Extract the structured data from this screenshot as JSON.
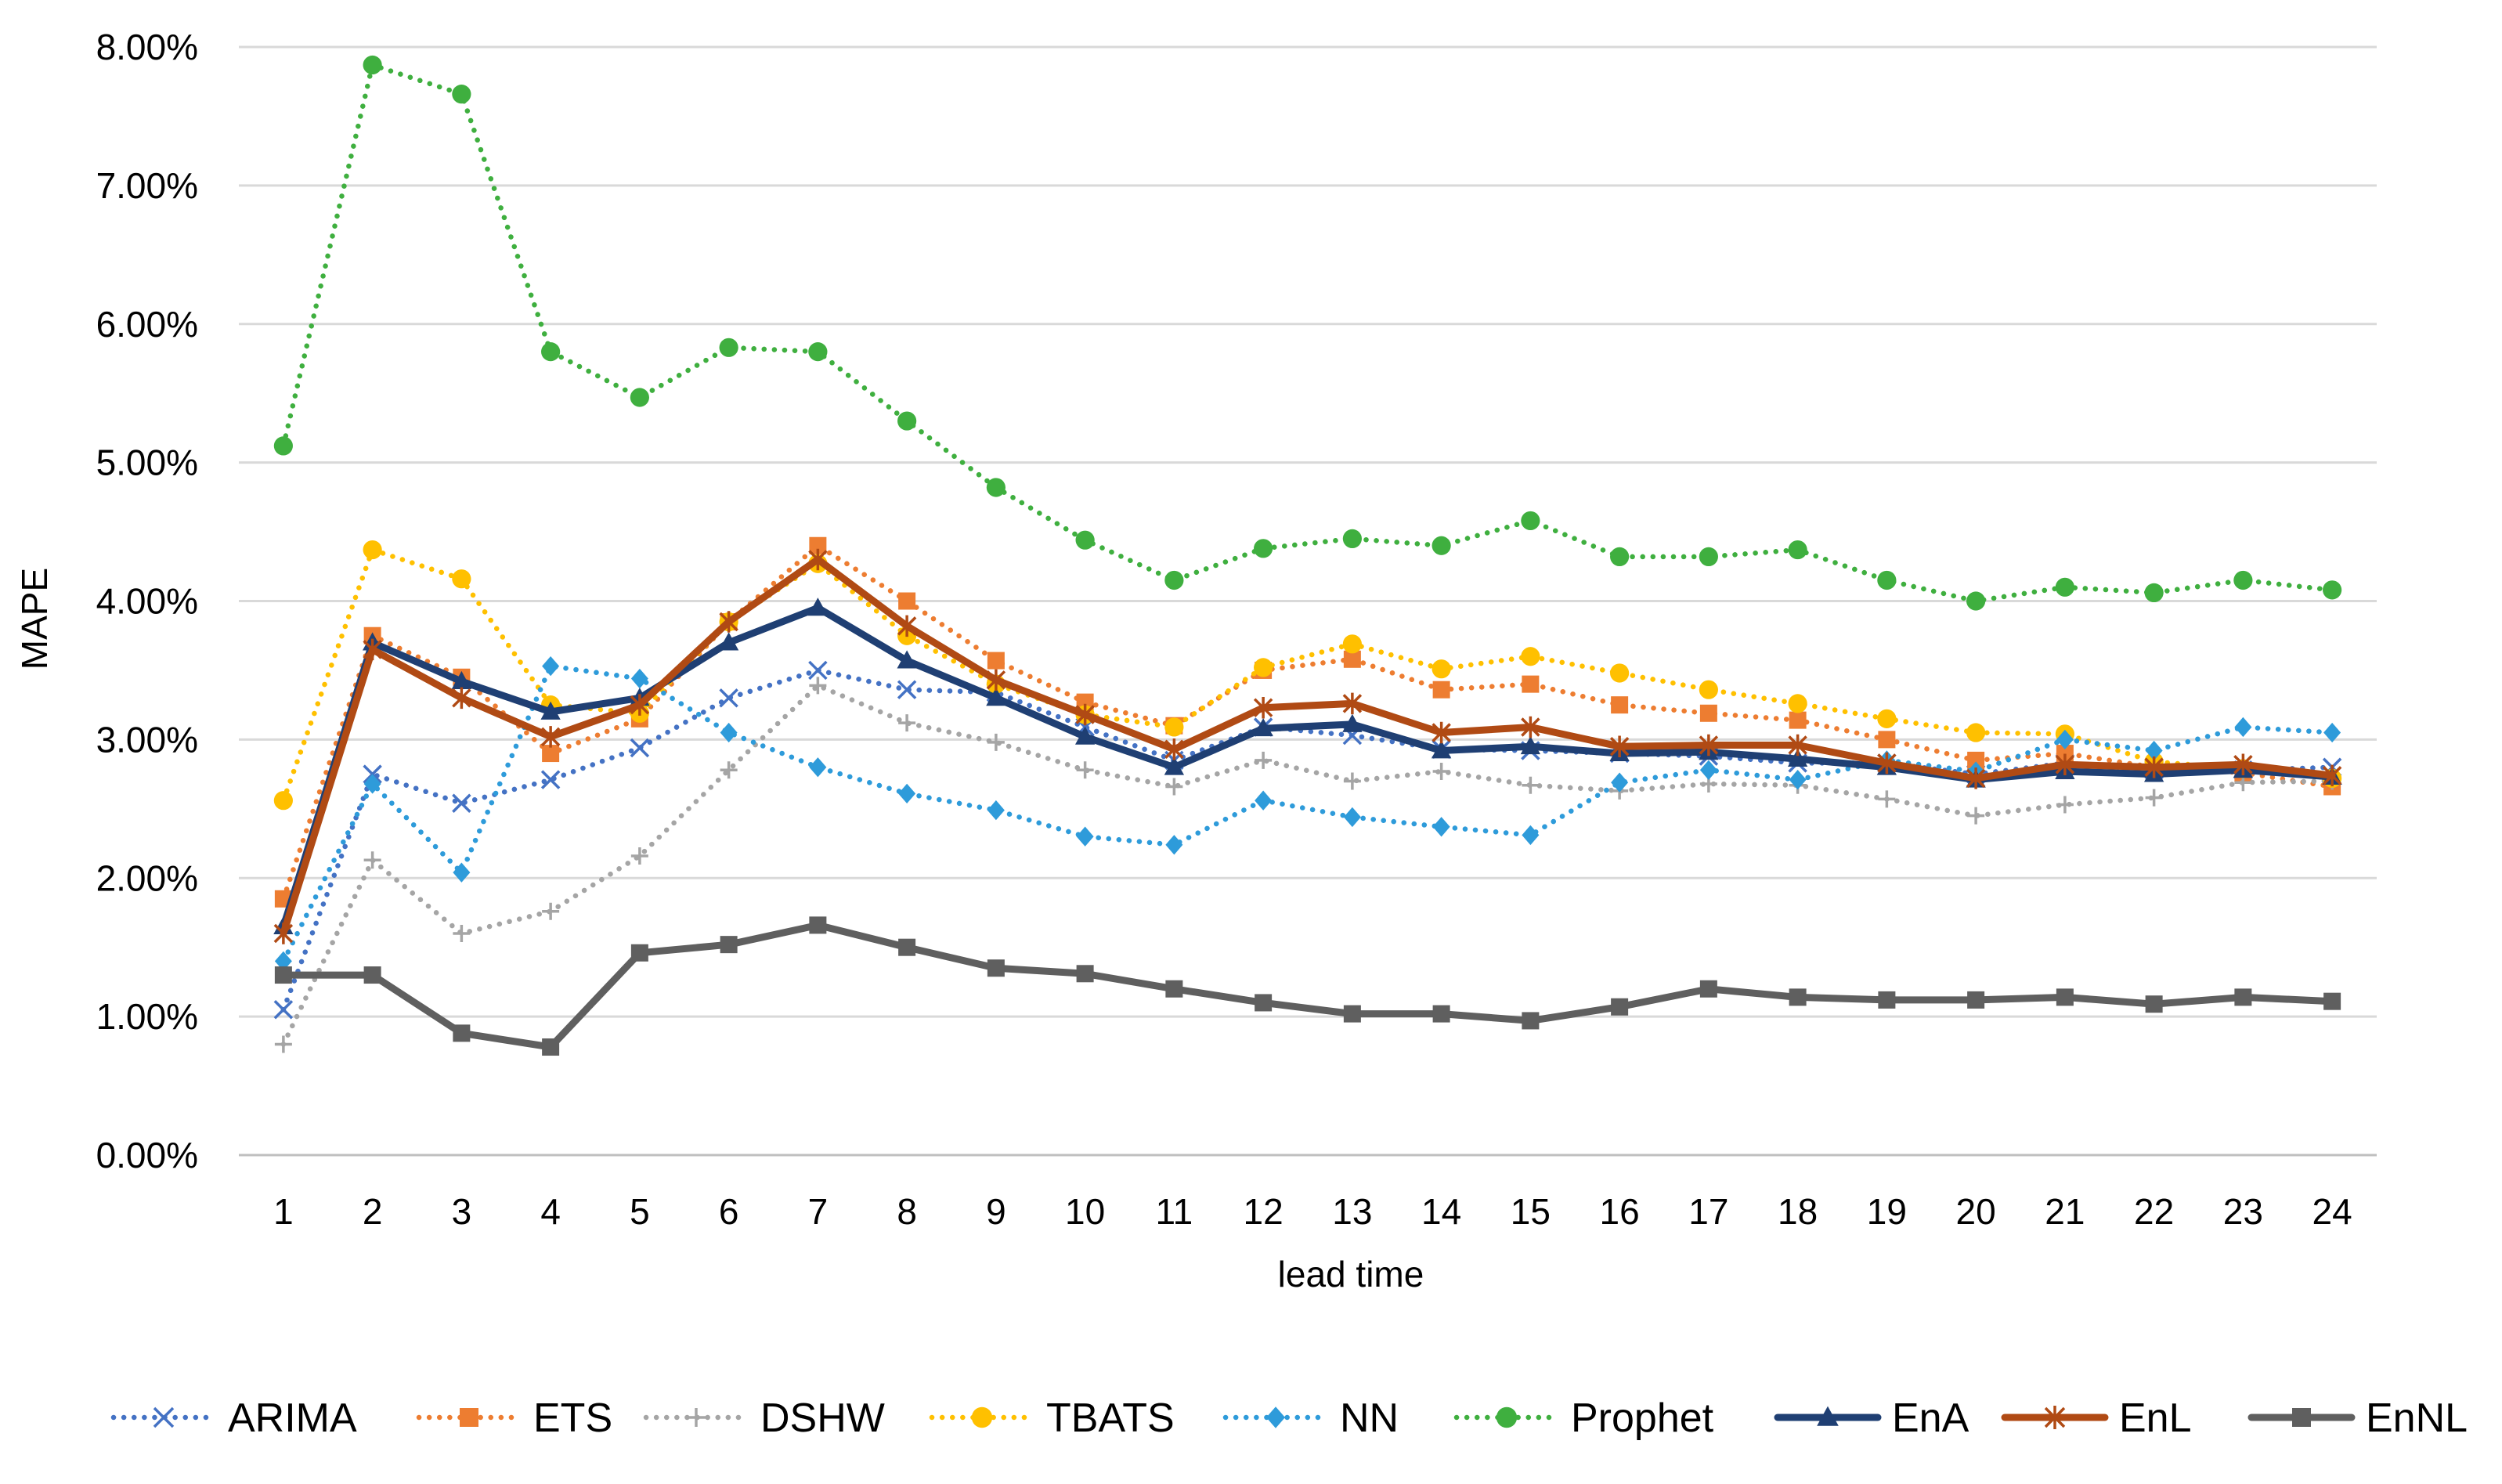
{
  "chart_data": {
    "type": "line",
    "title": "",
    "xlabel": "lead time",
    "ylabel": "MAPE",
    "ylim": [
      0,
      0.08
    ],
    "y_ticks": [
      "0.00%",
      "1.00%",
      "2.00%",
      "3.00%",
      "4.00%",
      "5.00%",
      "6.00%",
      "7.00%",
      "8.00%"
    ],
    "x": [
      "1",
      "2",
      "3",
      "4",
      "5",
      "6",
      "7",
      "8",
      "9",
      "10",
      "11",
      "12",
      "13",
      "14",
      "15",
      "16",
      "17",
      "18",
      "19",
      "20",
      "21",
      "22",
      "23",
      "24"
    ],
    "grid": true,
    "legend_position": "bottom",
    "series": [
      {
        "name": "ARIMA",
        "color": "#4472C4",
        "style": "dotted",
        "marker": "x",
        "values": [
          0.0105,
          0.0275,
          0.0254,
          0.0271,
          0.0294,
          0.033,
          0.035,
          0.0336,
          0.0334,
          0.0309,
          0.0285,
          0.0309,
          0.0303,
          0.0293,
          0.0292,
          0.029,
          0.0288,
          0.0283,
          0.0283,
          0.0275,
          0.0283,
          0.0278,
          0.0278,
          0.028
        ]
      },
      {
        "name": "ETS",
        "color": "#ED7D31",
        "style": "dotted",
        "marker": "square",
        "values": [
          0.0185,
          0.0375,
          0.0345,
          0.029,
          0.0315,
          0.0385,
          0.044,
          0.04,
          0.0357,
          0.0327,
          0.031,
          0.035,
          0.0358,
          0.0336,
          0.034,
          0.0325,
          0.0319,
          0.0314,
          0.03,
          0.0285,
          0.029,
          0.028,
          0.0276,
          0.0266
        ]
      },
      {
        "name": "DSHW",
        "color": "#A5A5A5",
        "style": "dotted",
        "marker": "plus",
        "values": [
          0.008,
          0.0213,
          0.016,
          0.0176,
          0.0216,
          0.0278,
          0.0339,
          0.0312,
          0.0298,
          0.0278,
          0.0266,
          0.0285,
          0.027,
          0.0277,
          0.0267,
          0.0263,
          0.0268,
          0.0267,
          0.0257,
          0.0245,
          0.0253,
          0.0258,
          0.0269,
          0.027
        ]
      },
      {
        "name": "TBATS",
        "color": "#FFC000",
        "style": "dotted",
        "marker": "circle",
        "values": [
          0.0256,
          0.0437,
          0.0416,
          0.0325,
          0.0319,
          0.0385,
          0.0427,
          0.0375,
          0.034,
          0.0318,
          0.0309,
          0.0352,
          0.0369,
          0.0351,
          0.036,
          0.0348,
          0.0336,
          0.0326,
          0.0315,
          0.0305,
          0.0304,
          0.0284,
          0.0279,
          0.0272
        ]
      },
      {
        "name": "NN",
        "color": "#2E9BDA",
        "style": "dotted",
        "marker": "diamond",
        "values": [
          0.014,
          0.0268,
          0.0204,
          0.0353,
          0.0344,
          0.0305,
          0.028,
          0.0261,
          0.0249,
          0.023,
          0.0224,
          0.0256,
          0.0244,
          0.0237,
          0.0231,
          0.0269,
          0.0278,
          0.0271,
          0.0285,
          0.0277,
          0.03,
          0.0292,
          0.0309,
          0.0305
        ]
      },
      {
        "name": "Prophet",
        "color": "#3FAF3F",
        "style": "dotted",
        "marker": "circle",
        "values": [
          0.0512,
          0.0787,
          0.0766,
          0.058,
          0.0547,
          0.0583,
          0.058,
          0.053,
          0.0482,
          0.0444,
          0.0415,
          0.0438,
          0.0445,
          0.044,
          0.0458,
          0.0432,
          0.0432,
          0.0437,
          0.0415,
          0.04,
          0.041,
          0.0406,
          0.0415,
          0.0408
        ]
      },
      {
        "name": "EnA",
        "color": "#1F3F73",
        "style": "solid",
        "marker": "triangle",
        "values": [
          0.0165,
          0.037,
          0.0342,
          0.032,
          0.033,
          0.037,
          0.0395,
          0.0357,
          0.033,
          0.0302,
          0.028,
          0.0308,
          0.0311,
          0.0292,
          0.0295,
          0.029,
          0.0291,
          0.0286,
          0.028,
          0.0271,
          0.0277,
          0.0275,
          0.0278,
          0.0273
        ]
      },
      {
        "name": "EnL",
        "color": "#B04A14",
        "style": "solid",
        "marker": "star",
        "values": [
          0.016,
          0.0365,
          0.033,
          0.0302,
          0.0325,
          0.0385,
          0.043,
          0.0382,
          0.0343,
          0.0318,
          0.0293,
          0.0323,
          0.0326,
          0.0305,
          0.0309,
          0.0295,
          0.0296,
          0.0296,
          0.0283,
          0.0272,
          0.0282,
          0.028,
          0.0282,
          0.0274
        ]
      },
      {
        "name": "EnNL",
        "color": "#5F5F5F",
        "style": "solid",
        "marker": "square",
        "values": [
          0.013,
          0.013,
          0.0088,
          0.0078,
          0.0146,
          0.0152,
          0.0166,
          0.015,
          0.0135,
          0.0131,
          0.012,
          0.011,
          0.0102,
          0.0102,
          0.0097,
          0.0107,
          0.012,
          0.0114,
          0.0112,
          0.0112,
          0.0114,
          0.0109,
          0.0114,
          0.0111
        ]
      }
    ]
  }
}
